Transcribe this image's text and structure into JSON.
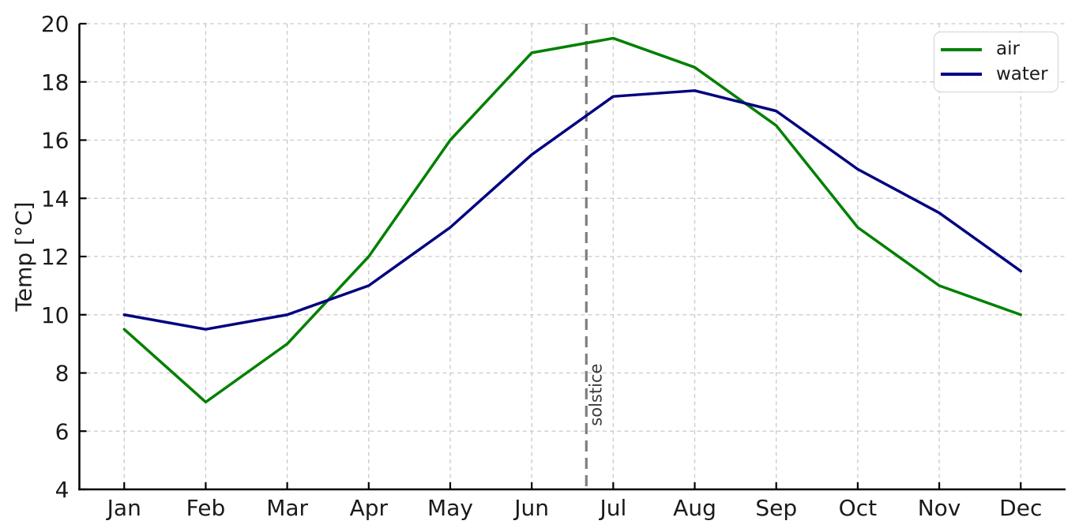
{
  "chart_data": {
    "type": "line",
    "x": [
      "Jan",
      "Feb",
      "Mar",
      "Apr",
      "May",
      "Jun",
      "Jul",
      "Aug",
      "Sep",
      "Oct",
      "Nov",
      "Dec"
    ],
    "series": [
      {
        "name": "air",
        "color": "#008000",
        "values": [
          9.5,
          7.0,
          9.0,
          12.0,
          16.0,
          19.0,
          19.5,
          18.5,
          16.5,
          13.0,
          11.0,
          10.0
        ]
      },
      {
        "name": "water",
        "color": "#000080",
        "values": [
          10.0,
          9.5,
          10.0,
          11.0,
          13.0,
          15.5,
          17.5,
          17.7,
          17.0,
          15.0,
          13.5,
          11.5
        ]
      }
    ],
    "title": "",
    "xlabel": "",
    "ylabel": "Temp [°C]",
    "ylim": [
      4,
      20
    ],
    "yticks": [
      4,
      6,
      8,
      10,
      12,
      14,
      16,
      18,
      20
    ],
    "grid": true,
    "grid_style": "dashed",
    "legend_position": "top-right",
    "annotation": {
      "label": "solstice",
      "x_index": 5.67,
      "color": "#7f7f7f",
      "style": "dashed-vertical"
    }
  },
  "style": {
    "grid_color": "#c9c9c9",
    "spine_color": "#000000",
    "text_color": "#1a1a1a",
    "annotation_text_color": "#3a3a3a",
    "background": "#ffffff"
  }
}
